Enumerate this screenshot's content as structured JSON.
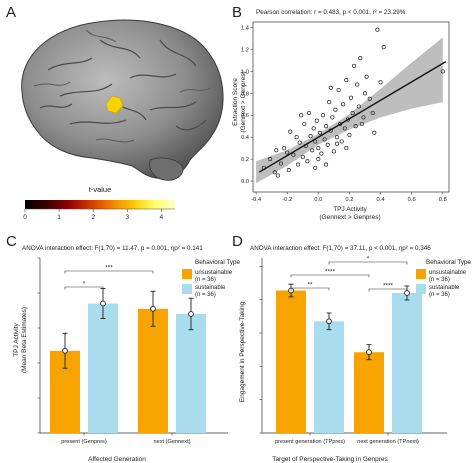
{
  "panels": {
    "a": {
      "letter": "A",
      "colorbar": {
        "title": "t-value",
        "ticks": [
          "0",
          "1",
          "2",
          "3",
          "4"
        ],
        "gradient": [
          "#000000",
          "#3a0000",
          "#8b0000",
          "#d23600",
          "#f27d00",
          "#fbc400",
          "#ffff66",
          "#ffffd0"
        ]
      },
      "activation_color": "#f5d200"
    },
    "b": {
      "letter": "B",
      "stats": "Pearson correlation: r = 0.483, p < 0.001, r² = 23.29%",
      "ylabel_line1": "Extraction Score",
      "ylabel_line2": "(Gennext > Genpres)",
      "xlabel_line1": "TPJ Activity",
      "xlabel_line2": "(Gennext > Genpres)"
    },
    "c": {
      "letter": "C",
      "stats": "ANOVA interaction effect: F(1,70) = 11.47, p = 0.001, ηp² = 0.141",
      "ylabel_line1": "TPJ Activity",
      "ylabel_line2": "(Mean Beta Estimates)",
      "xlabel": "Affected Generation",
      "legend_title": "Behavioral Type",
      "legend_items": [
        {
          "line1": "unsustainable",
          "line2": "(n = 36)"
        },
        {
          "line1": "sustainable",
          "line2": "(n = 36)"
        }
      ],
      "sig_labels": [
        "***",
        "*"
      ]
    },
    "d": {
      "letter": "D",
      "stats": "ANOVA interaction effect: F(1,70) = 37.11, p < 0.001, ηp² = 0.346",
      "ylabel_line1": "Engagement in Perspective-Taking",
      "xlabel": "Target of Perspective-Taking in Genpres",
      "legend_title": "Behavioral Type",
      "legend_items": [
        {
          "line1": "unsustainable",
          "line2": "(n = 36)"
        },
        {
          "line1": "sustainable",
          "line2": "(n = 36)"
        }
      ],
      "sig_labels": [
        "*",
        "****",
        "**",
        "****"
      ]
    }
  },
  "chart_data": [
    {
      "panel": "B",
      "type": "scatter",
      "title": "Pearson correlation: r = 0.483, p < 0.001, r² = 23.29%",
      "xlabel": "TPJ Activity (Gennext > Genpres)",
      "ylabel": "Extraction Score (Gennext > Genpres)",
      "xlim": [
        -0.42,
        0.84
      ],
      "ylim": [
        -0.1,
        1.45
      ],
      "xticks": [
        -0.4,
        -0.2,
        0.0,
        0.2,
        0.4,
        0.6,
        0.8
      ],
      "xtick_labels": [
        "-0.4",
        "-0.2",
        "0.0",
        "0.2",
        "0.4",
        "0.6",
        "0.8"
      ],
      "yticks": [
        0.0,
        0.2,
        0.4,
        0.6,
        0.8,
        1.0,
        1.2,
        1.4
      ],
      "ytick_labels": [
        "0.0",
        "0.2",
        "0.4",
        "0.6",
        "0.8",
        "1.0",
        "1.2",
        "1.4"
      ],
      "fit": {
        "intercept": 0.4,
        "slope": 0.84
      },
      "band": {
        "x": [
          -0.4,
          -0.2,
          0.0,
          0.2,
          0.4,
          0.6,
          0.8
        ],
        "lower": [
          -0.02,
          0.14,
          0.33,
          0.47,
          0.58,
          0.66,
          0.72
        ],
        "upper": [
          0.18,
          0.28,
          0.43,
          0.61,
          0.84,
          1.08,
          1.31
        ]
      },
      "x": [
        -0.35,
        -0.31,
        -0.27,
        -0.26,
        -0.24,
        -0.22,
        -0.2,
        -0.19,
        -0.18,
        -0.16,
        -0.14,
        -0.13,
        -0.12,
        -0.1,
        -0.09,
        -0.08,
        -0.07,
        -0.06,
        -0.05,
        -0.04,
        -0.03,
        -0.02,
        -0.01,
        0.0,
        0.0,
        0.01,
        0.02,
        0.03,
        0.04,
        0.05,
        0.06,
        0.07,
        0.08,
        0.09,
        0.1,
        0.11,
        0.12,
        0.13,
        0.14,
        0.15,
        0.16,
        0.17,
        0.18,
        0.19,
        0.2,
        0.21,
        0.22,
        0.23,
        0.24,
        0.25,
        0.26,
        0.27,
        0.29,
        0.3,
        0.31,
        0.33,
        0.35,
        0.38,
        0.4,
        0.42,
        0.8,
        -0.28,
        -0.11,
        0.05,
        0.18,
        0.36,
        0.08,
        -0.02,
        0.12,
        0.28
      ],
      "y": [
        0.12,
        0.2,
        0.28,
        0.05,
        0.16,
        0.3,
        0.26,
        0.1,
        0.45,
        0.24,
        0.4,
        0.15,
        0.35,
        0.22,
        0.52,
        0.32,
        0.18,
        0.62,
        0.41,
        0.28,
        0.48,
        0.36,
        0.55,
        0.2,
        0.3,
        0.44,
        0.25,
        0.6,
        0.38,
        0.5,
        0.33,
        0.72,
        0.46,
        0.58,
        0.27,
        0.65,
        0.4,
        0.83,
        0.52,
        0.36,
        0.7,
        0.48,
        0.92,
        0.56,
        0.42,
        0.76,
        0.62,
        1.05,
        0.5,
        0.88,
        0.68,
        1.12,
        0.58,
        0.8,
        0.95,
        0.75,
        0.62,
        1.38,
        0.9,
        1.22,
        1.0,
        0.08,
        0.6,
        0.15,
        0.3,
        0.44,
        0.85,
        0.12,
        0.34,
        0.52
      ]
    },
    {
      "panel": "C",
      "type": "bar",
      "title": "ANOVA interaction effect: F(1,70) = 11.47, p = 0.001, ηp² = 0.141",
      "categories": [
        "present (Genpres)",
        "next (Gennext)"
      ],
      "xlabel": "Affected Generation",
      "ylabel": "TPJ Activity (Mean Beta Estimates)",
      "ylim": [
        0,
        0.5
      ],
      "series": [
        {
          "name": "unsustainable (n = 36)",
          "values": [
            0.235,
            0.355
          ],
          "error": [
            0.05,
            0.05
          ],
          "color": "#f7a400"
        },
        {
          "name": "sustainable (n = 36)",
          "values": [
            0.37,
            0.34
          ],
          "error": [
            0.043,
            0.045
          ],
          "color": "#a9dced"
        }
      ],
      "significance": [
        {
          "from": [
            0,
            0
          ],
          "to": [
            0,
            1
          ],
          "label": "*"
        },
        {
          "from": [
            0,
            0
          ],
          "to": [
            1,
            0
          ],
          "label": "***"
        }
      ]
    },
    {
      "panel": "D",
      "type": "bar",
      "title": "ANOVA interaction effect: F(1,70) = 37.11, p < 0.001, ηp² = 0.346",
      "categories": [
        "present generation (TPpres)",
        "next generation (TPnext)"
      ],
      "xlabel": "Target of Perspective-Taking in Genpres",
      "ylabel": "Engagement in Perspective-Taking",
      "ylim": [
        0,
        10.5
      ],
      "series": [
        {
          "name": "unsustainable (n = 36)",
          "values": [
            8.55,
            4.85
          ],
          "error": [
            0.38,
            0.45
          ],
          "color": "#f7a400"
        },
        {
          "name": "sustainable (n = 36)",
          "values": [
            6.7,
            8.4
          ],
          "error": [
            0.5,
            0.42
          ],
          "color": "#a9dced"
        }
      ],
      "significance": [
        {
          "from": [
            0,
            0
          ],
          "to": [
            0,
            1
          ],
          "label": "**"
        },
        {
          "from": [
            1,
            0
          ],
          "to": [
            1,
            1
          ],
          "label": "****"
        },
        {
          "from": [
            0,
            0
          ],
          "to": [
            1,
            0
          ],
          "label": "****"
        },
        {
          "from": [
            0,
            1
          ],
          "to": [
            1,
            1
          ],
          "label": "*"
        }
      ]
    }
  ]
}
